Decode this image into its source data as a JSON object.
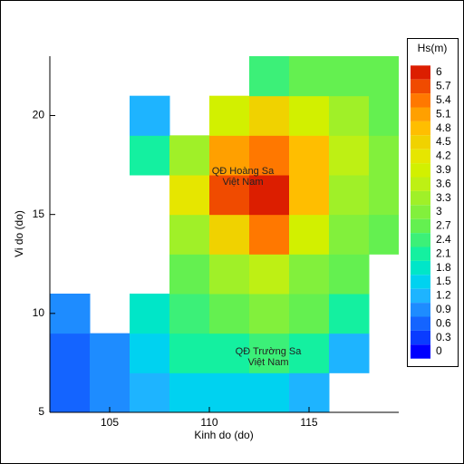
{
  "chart_data": {
    "type": "heatmap",
    "x_label": "Kinh do (do)",
    "y_label": "Vi do (do)",
    "xlim": [
      102,
      119.5
    ],
    "ylim": [
      5,
      23
    ],
    "xticks": [
      105,
      110,
      115
    ],
    "yticks": [
      5,
      10,
      15,
      20
    ],
    "x": [
      103,
      105,
      107,
      109,
      111,
      113,
      115,
      117,
      119
    ],
    "y": [
      6,
      8,
      10,
      12,
      14,
      16,
      18,
      20,
      22
    ],
    "values": [
      [
        0.6,
        0.9,
        1.2,
        1.5,
        1.5,
        1.5,
        1.2,
        null,
        null
      ],
      [
        0.6,
        0.9,
        1.5,
        2.1,
        2.1,
        2.4,
        2.1,
        1.2,
        null
      ],
      [
        0.9,
        null,
        1.8,
        2.4,
        2.7,
        3,
        2.7,
        2.1,
        null
      ],
      [
        null,
        null,
        null,
        2.7,
        3.3,
        3.6,
        3,
        2.7,
        null
      ],
      [
        null,
        null,
        null,
        3.3,
        4.5,
        5.4,
        3.9,
        3,
        2.7
      ],
      [
        null,
        null,
        null,
        4.2,
        5.7,
        6,
        4.8,
        3.3,
        3
      ],
      [
        null,
        null,
        2.1,
        3.3,
        5.1,
        5.4,
        4.8,
        3.6,
        3
      ],
      [
        null,
        null,
        1.2,
        null,
        3.9,
        4.5,
        3.9,
        3.3,
        2.7
      ],
      [
        null,
        null,
        null,
        null,
        null,
        2.4,
        2.7,
        2.7,
        2.7
      ]
    ],
    "colorbar": {
      "title": "Hs(m)",
      "levels": [
        6,
        5.7,
        5.4,
        5.1,
        4.8,
        4.5,
        4.2,
        3.9,
        3.6,
        3.3,
        3,
        2.7,
        2.4,
        2.1,
        1.8,
        1.5,
        1.2,
        0.9,
        0.6,
        0.3,
        0
      ],
      "colors": [
        "#dc1e00",
        "#f04b00",
        "#ff7800",
        "#ffa000",
        "#ffbe00",
        "#f0d200",
        "#e6e600",
        "#d2f000",
        "#bef014",
        "#a0f028",
        "#82f03c",
        "#64f050",
        "#3cf078",
        "#14f0a0",
        "#00e6c8",
        "#00d2f0",
        "#1eb4ff",
        "#1e8cff",
        "#1464ff",
        "#0a3cff",
        "#0000ff"
      ]
    },
    "annotations": [
      {
        "lines": [
          "QĐ Hoàng Sa",
          "Việt Nam"
        ]
      },
      {
        "lines": [
          "QĐ Trường Sa",
          "Việt Nam"
        ]
      }
    ]
  }
}
